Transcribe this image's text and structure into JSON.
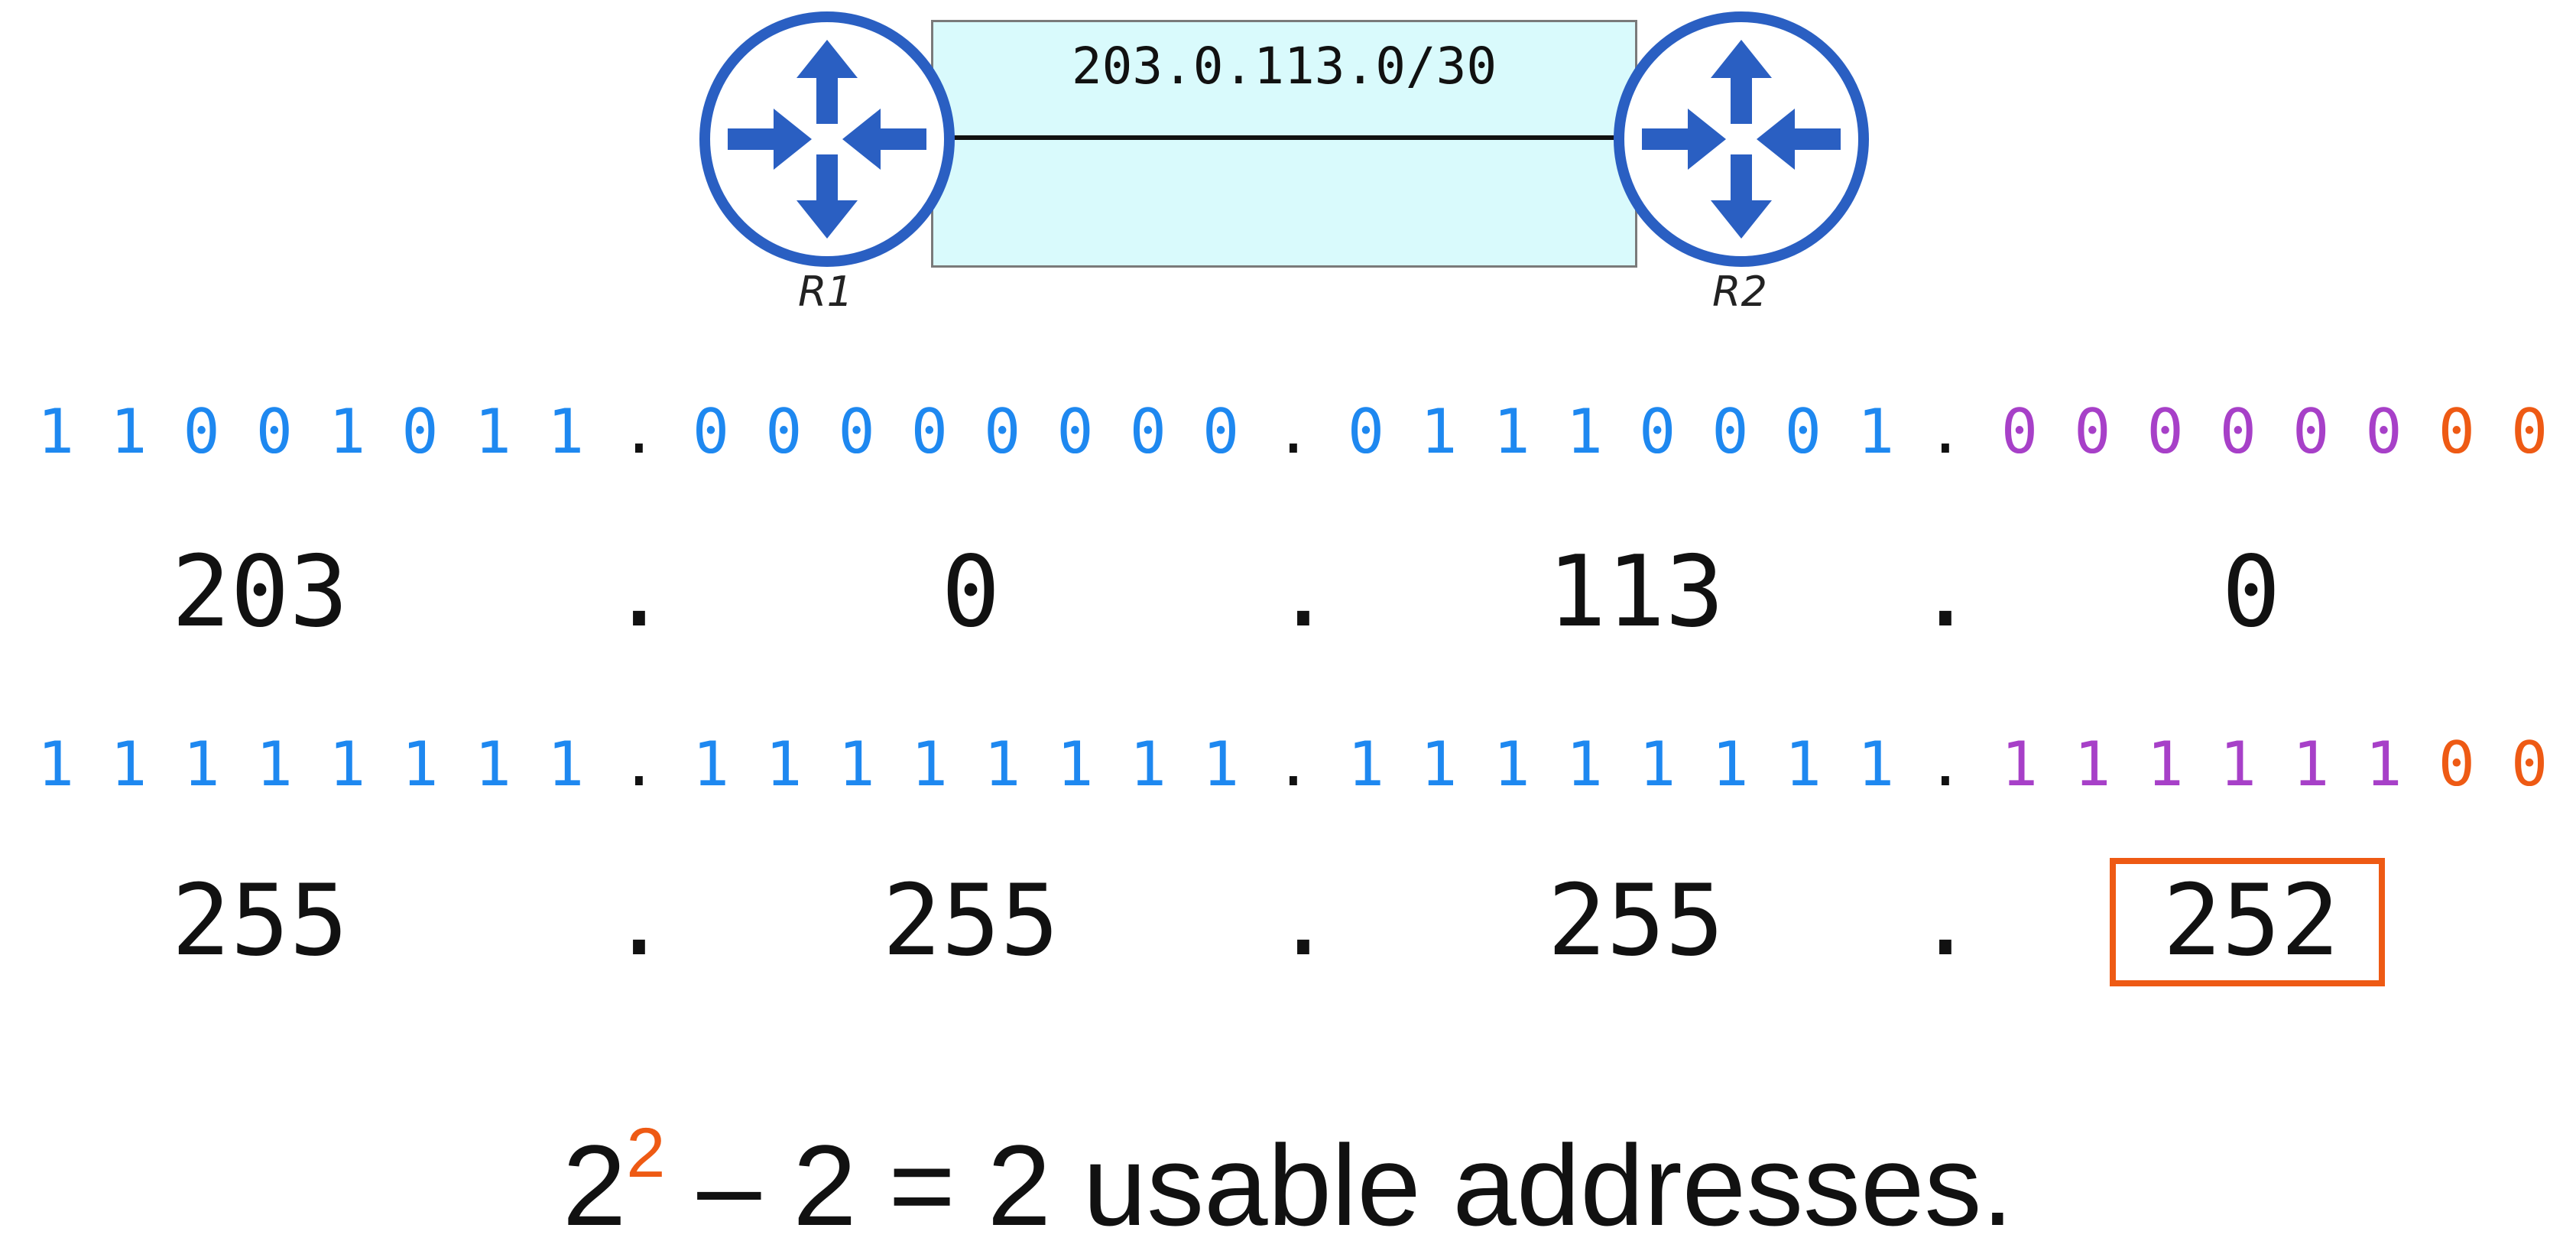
{
  "link": {
    "subnet": "203.0.113.0/30"
  },
  "routers": [
    {
      "label": "R1",
      "icon": "router-icon",
      "color": "#2a5fc2"
    },
    {
      "label": "R2",
      "icon": "router-icon",
      "color": "#2a5fc2"
    }
  ],
  "colors": {
    "network_bits": "#1e88f0",
    "subnet_bits": "#a740c8",
    "host_bits": "#ee5a14",
    "highlight": "#ee5a14"
  },
  "ip_binary": [
    [
      "1",
      "1",
      "0",
      "0",
      "1",
      "0",
      "1",
      "1"
    ],
    [
      "0",
      "0",
      "0",
      "0",
      "0",
      "0",
      "0",
      "0"
    ],
    [
      "0",
      "1",
      "1",
      "1",
      "0",
      "0",
      "0",
      "1"
    ],
    [
      "0",
      "0",
      "0",
      "0",
      "0",
      "0",
      "0",
      "0"
    ]
  ],
  "ip_decimal": [
    "203",
    "0",
    "113",
    "0"
  ],
  "mask_binary": [
    [
      "1",
      "1",
      "1",
      "1",
      "1",
      "1",
      "1",
      "1"
    ],
    [
      "1",
      "1",
      "1",
      "1",
      "1",
      "1",
      "1",
      "1"
    ],
    [
      "1",
      "1",
      "1",
      "1",
      "1",
      "1",
      "1",
      "1"
    ],
    [
      "1",
      "1",
      "1",
      "1",
      "1",
      "1",
      "0",
      "0"
    ]
  ],
  "mask_decimal": [
    "255",
    "255",
    "255",
    "252"
  ],
  "separator": ".",
  "formula": {
    "base": "2",
    "exponent": "2",
    "rest": " – 2 = 2 usable addresses."
  }
}
